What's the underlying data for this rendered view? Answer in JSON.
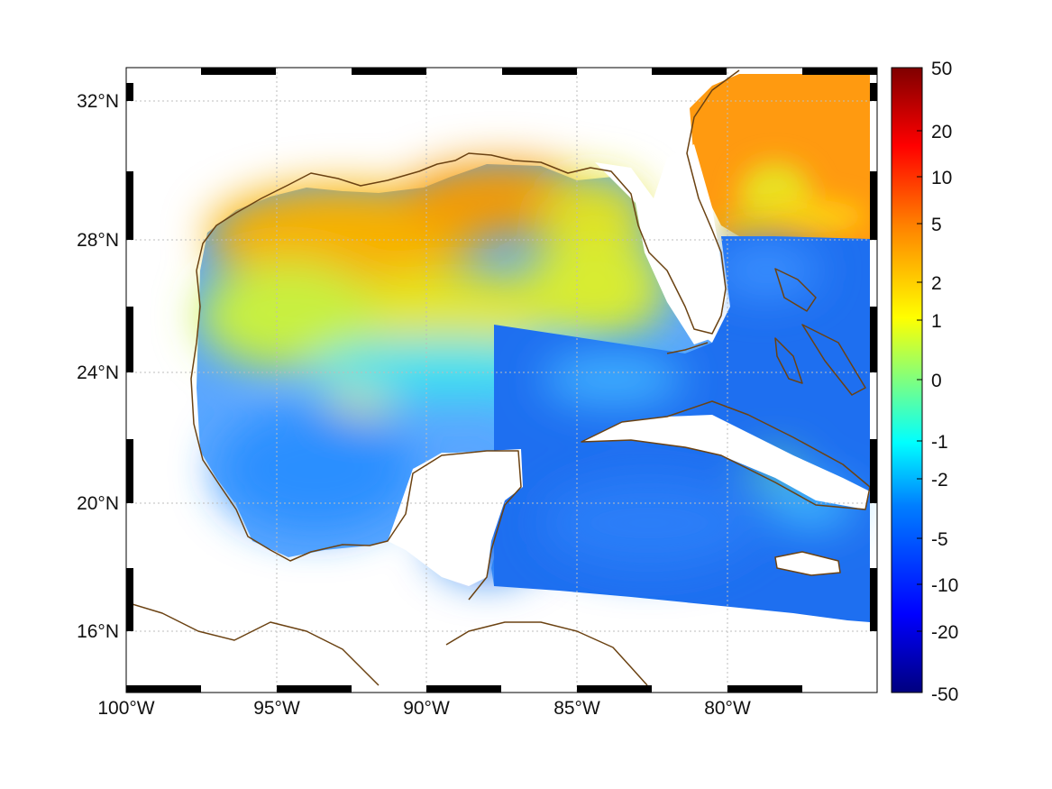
{
  "map": {
    "lon_labels": [
      "100°W",
      "95°W",
      "90°W",
      "85°W",
      "80°W"
    ],
    "lat_labels": [
      "32°N",
      "28°N",
      "24°N",
      "20°N",
      "16°N"
    ],
    "extent": {
      "lon_min": -100,
      "lon_max": -75,
      "lat_min": 14.3,
      "lat_max": 33
    },
    "grid": true,
    "frame": "black-white-dashed"
  },
  "colorbar": {
    "tick_labels": [
      "50",
      "20",
      "10",
      "5",
      "2",
      "1",
      "0",
      "-1",
      "-2",
      "-5",
      "-10",
      "-20",
      "-50"
    ],
    "colormap": "jet",
    "colors": [
      "#00007f",
      "#0000ff",
      "#007fff",
      "#00ffff",
      "#7fff7f",
      "#ffff00",
      "#ff7f00",
      "#ff0000",
      "#7f0000"
    ]
  },
  "colors": {
    "coastline": "#6b4212",
    "land": "#ffffff",
    "gulf_ocean": "#5aa6ff",
    "caribbean": "#1e6ff0",
    "northern_shelf": "#f5b000",
    "atlantic_north": "#ff9a10"
  }
}
